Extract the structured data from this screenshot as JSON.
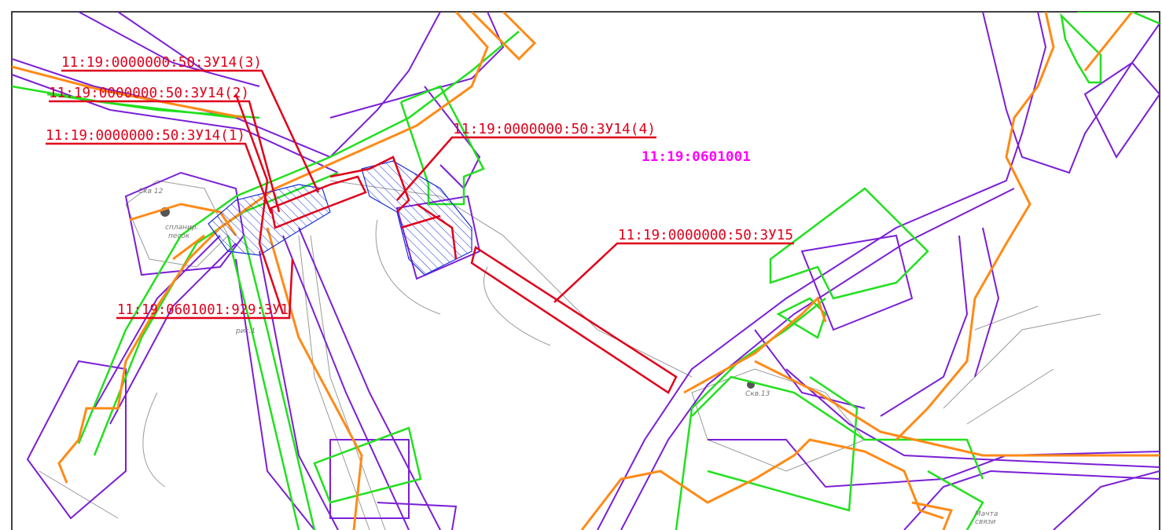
{
  "map": {
    "parcel_labels": [
      "11:19:0000000:50:ЗУ14(3)",
      "11:19:0000000:50:ЗУ14(2)",
      "11:19:0000000:50:ЗУ14(1)",
      "11:19:0000000:50:ЗУ14(4)",
      "11:19:0000000:50:ЗУ15",
      "11:19:0601001:929:ЗУ1"
    ],
    "quarter_label": "11:19:0601001",
    "notes": [
      "Скв 12",
      "спланир.",
      "песок",
      "рис.1",
      "Скв.13",
      "Мачта",
      "связи"
    ]
  }
}
